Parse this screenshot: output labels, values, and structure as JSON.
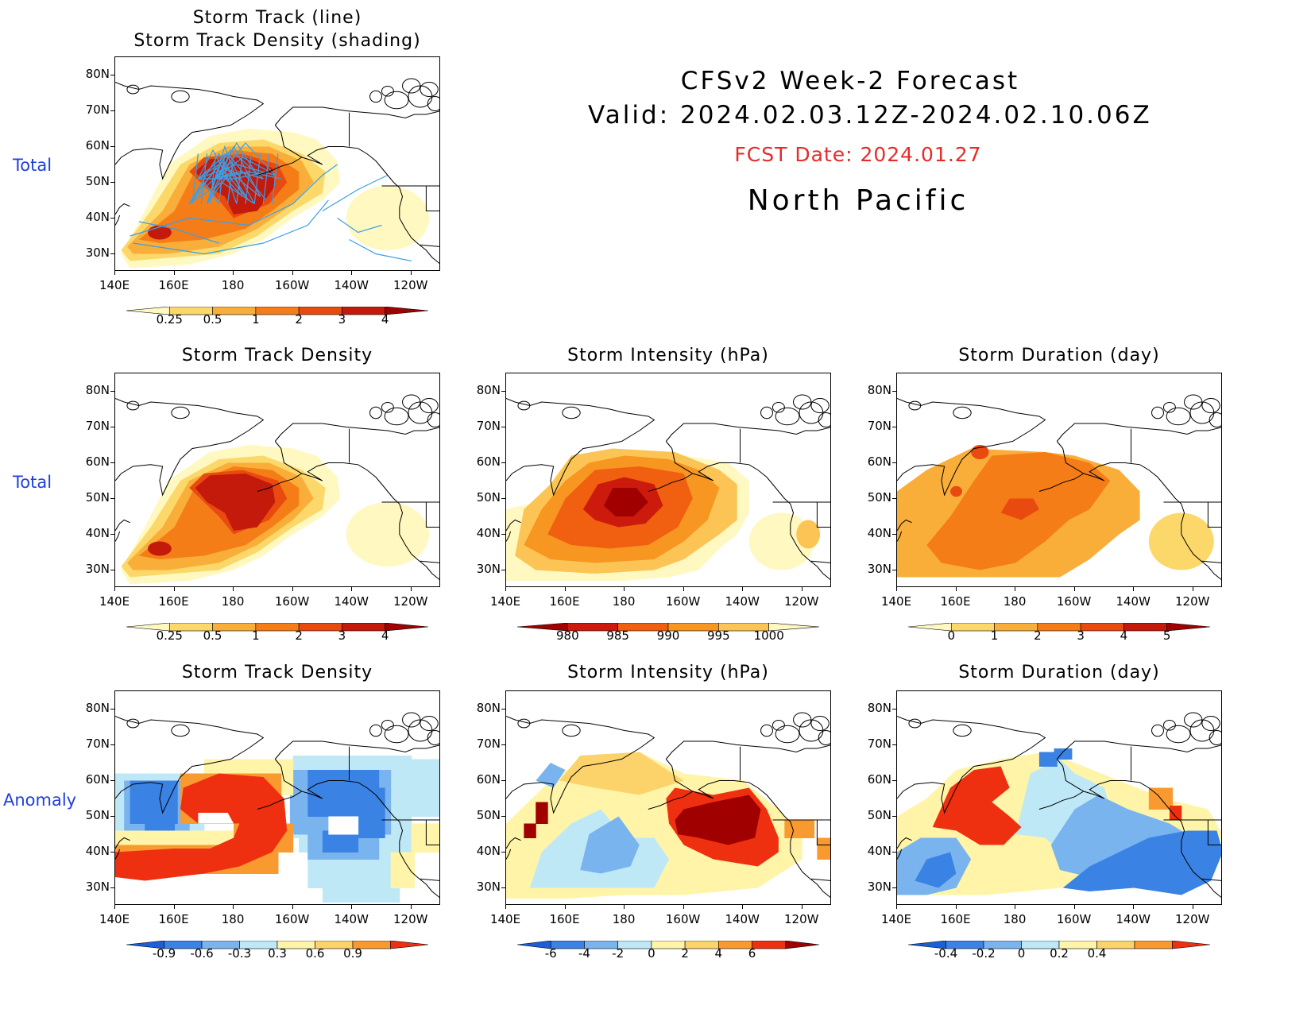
{
  "header": {
    "line1": "CFSv2 Week-2 Forecast",
    "line2": "Valid: 2024.02.03.12Z-2024.02.10.06Z",
    "fcst": "FCST Date: 2024.01.27",
    "region": "North Pacific"
  },
  "row_labels": [
    "Total",
    "Total",
    "Anomaly"
  ],
  "axes": {
    "lat_labels": [
      "80N",
      "70N",
      "60N",
      "50N",
      "40N",
      "30N"
    ],
    "lon_labels": [
      "140E",
      "160E",
      "180",
      "160W",
      "140W",
      "120W"
    ]
  },
  "panels": [
    {
      "id": "p0",
      "title_lines": [
        "Storm Track (line)",
        "Storm Track Density (shading)"
      ],
      "cbar": "density"
    },
    {
      "id": "p1",
      "title_lines": [
        "Storm Track Density"
      ],
      "cbar": "density"
    },
    {
      "id": "p2",
      "title_lines": [
        "Storm Intensity (hPa)"
      ],
      "cbar": "intensity"
    },
    {
      "id": "p3",
      "title_lines": [
        "Storm Duration (day)"
      ],
      "cbar": "duration"
    },
    {
      "id": "p4",
      "title_lines": [
        "Storm Track Density"
      ],
      "cbar": "density_anom"
    },
    {
      "id": "p5",
      "title_lines": [
        "Storm Intensity (hPa)"
      ],
      "cbar": "intensity_anom"
    },
    {
      "id": "p6",
      "title_lines": [
        "Storm Duration (day)"
      ],
      "cbar": "duration_anom"
    }
  ],
  "colorbars": {
    "density": {
      "labels": [
        "0.25",
        "0.5",
        "1",
        "2",
        "3",
        "4"
      ],
      "colors": [
        "#fff8c0",
        "#fcd86a",
        "#f9ae3a",
        "#f57d18",
        "#e84a10",
        "#c41a0c",
        "#a00000"
      ]
    },
    "intensity": {
      "labels": [
        "980",
        "985",
        "990",
        "995",
        "1000"
      ],
      "colors": [
        "#a00000",
        "#cc1a0c",
        "#f06010",
        "#f79620",
        "#fbc455",
        "#fff8c0"
      ]
    },
    "duration": {
      "labels": [
        "0",
        "1",
        "2",
        "3",
        "4",
        "5"
      ],
      "colors": [
        "#fff8c0",
        "#fcd86a",
        "#f9ae3a",
        "#f57d18",
        "#e84a10",
        "#c41a0c",
        "#a00000"
      ]
    },
    "density_anom": {
      "labels": [
        "-0.9",
        "-0.6",
        "-0.3",
        "0.3",
        "0.6",
        "0.9"
      ],
      "colors": [
        "#1a5fd8",
        "#3a82e4",
        "#7ab4ee",
        "#bfe8f7",
        "#fff4a8",
        "#fcd36a",
        "#f99a30",
        "#ee3010"
      ]
    },
    "intensity_anom": {
      "labels": [
        "-6",
        "-4",
        "-2",
        "0",
        "2",
        "4",
        "6"
      ],
      "colors": [
        "#1a5fd8",
        "#3a82e4",
        "#7ab4ee",
        "#bfe8f7",
        "#fff4a8",
        "#fcd36a",
        "#f99a30",
        "#ee3010",
        "#a00000"
      ]
    },
    "duration_anom": {
      "labels": [
        "-0.4",
        "-0.2",
        "0",
        "0.2",
        "0.4"
      ],
      "colors": [
        "#1a5fd8",
        "#3a82e4",
        "#7ab4ee",
        "#bfe8f7",
        "#fff4a8",
        "#fcd36a",
        "#f99a30",
        "#ee3010"
      ]
    }
  },
  "chart_data": [
    {
      "type": "heatmap",
      "panel": "p0",
      "title": "Storm Track (line) / Storm Track Density (shading)",
      "x_range": [
        "140E",
        "110W"
      ],
      "y_range": [
        "25N",
        "85N"
      ],
      "max_region": {
        "lat": [
          45,
          57
        ],
        "lon": [
          "165E",
          "160W"
        ],
        "value": ">4"
      }
    },
    {
      "type": "heatmap",
      "panel": "p1",
      "title": "Storm Track Density",
      "max_region": {
        "lat": [
          42,
          57
        ],
        "lon": [
          "165E",
          "163W"
        ],
        "value": ">4"
      }
    },
    {
      "type": "heatmap",
      "panel": "p2",
      "title": "Storm Intensity (hPa)",
      "min_region": {
        "lat": [
          44,
          53
        ],
        "lon": [
          "175E",
          "170W"
        ],
        "value": "<980"
      }
    },
    {
      "type": "heatmap",
      "panel": "p3",
      "title": "Storm Duration (day)",
      "max_region": {
        "lat": [
          45,
          50
        ],
        "lon": [
          "175E",
          "175W"
        ],
        "value": "4-5"
      }
    },
    {
      "type": "heatmap",
      "panel": "p4",
      "title": "Storm Track Density",
      "positive_region": {
        "lat": [
          32,
          60
        ],
        "lon": [
          "140E",
          "165W"
        ],
        "value": ">0.9"
      },
      "negative_region": {
        "lat": [
          35,
          62
        ],
        "lon": [
          "165W",
          "140W"
        ],
        "value": "<-0.9"
      }
    },
    {
      "type": "heatmap",
      "panel": "p5",
      "title": "Storm Intensity (hPa)",
      "positive_region": {
        "lat": [
          38,
          58
        ],
        "lon": [
          "155W",
          "135W"
        ],
        "value": ">6"
      }
    },
    {
      "type": "heatmap",
      "panel": "p6",
      "title": "Storm Duration (day)",
      "positive_region": {
        "lat": [
          45,
          62
        ],
        "lon": [
          "160E",
          "175W"
        ],
        "value": ">0.4"
      },
      "negative_region": {
        "lat": [
          30,
          45
        ],
        "lon": [
          "170W",
          "110W"
        ],
        "value": "<-0.4"
      }
    }
  ]
}
